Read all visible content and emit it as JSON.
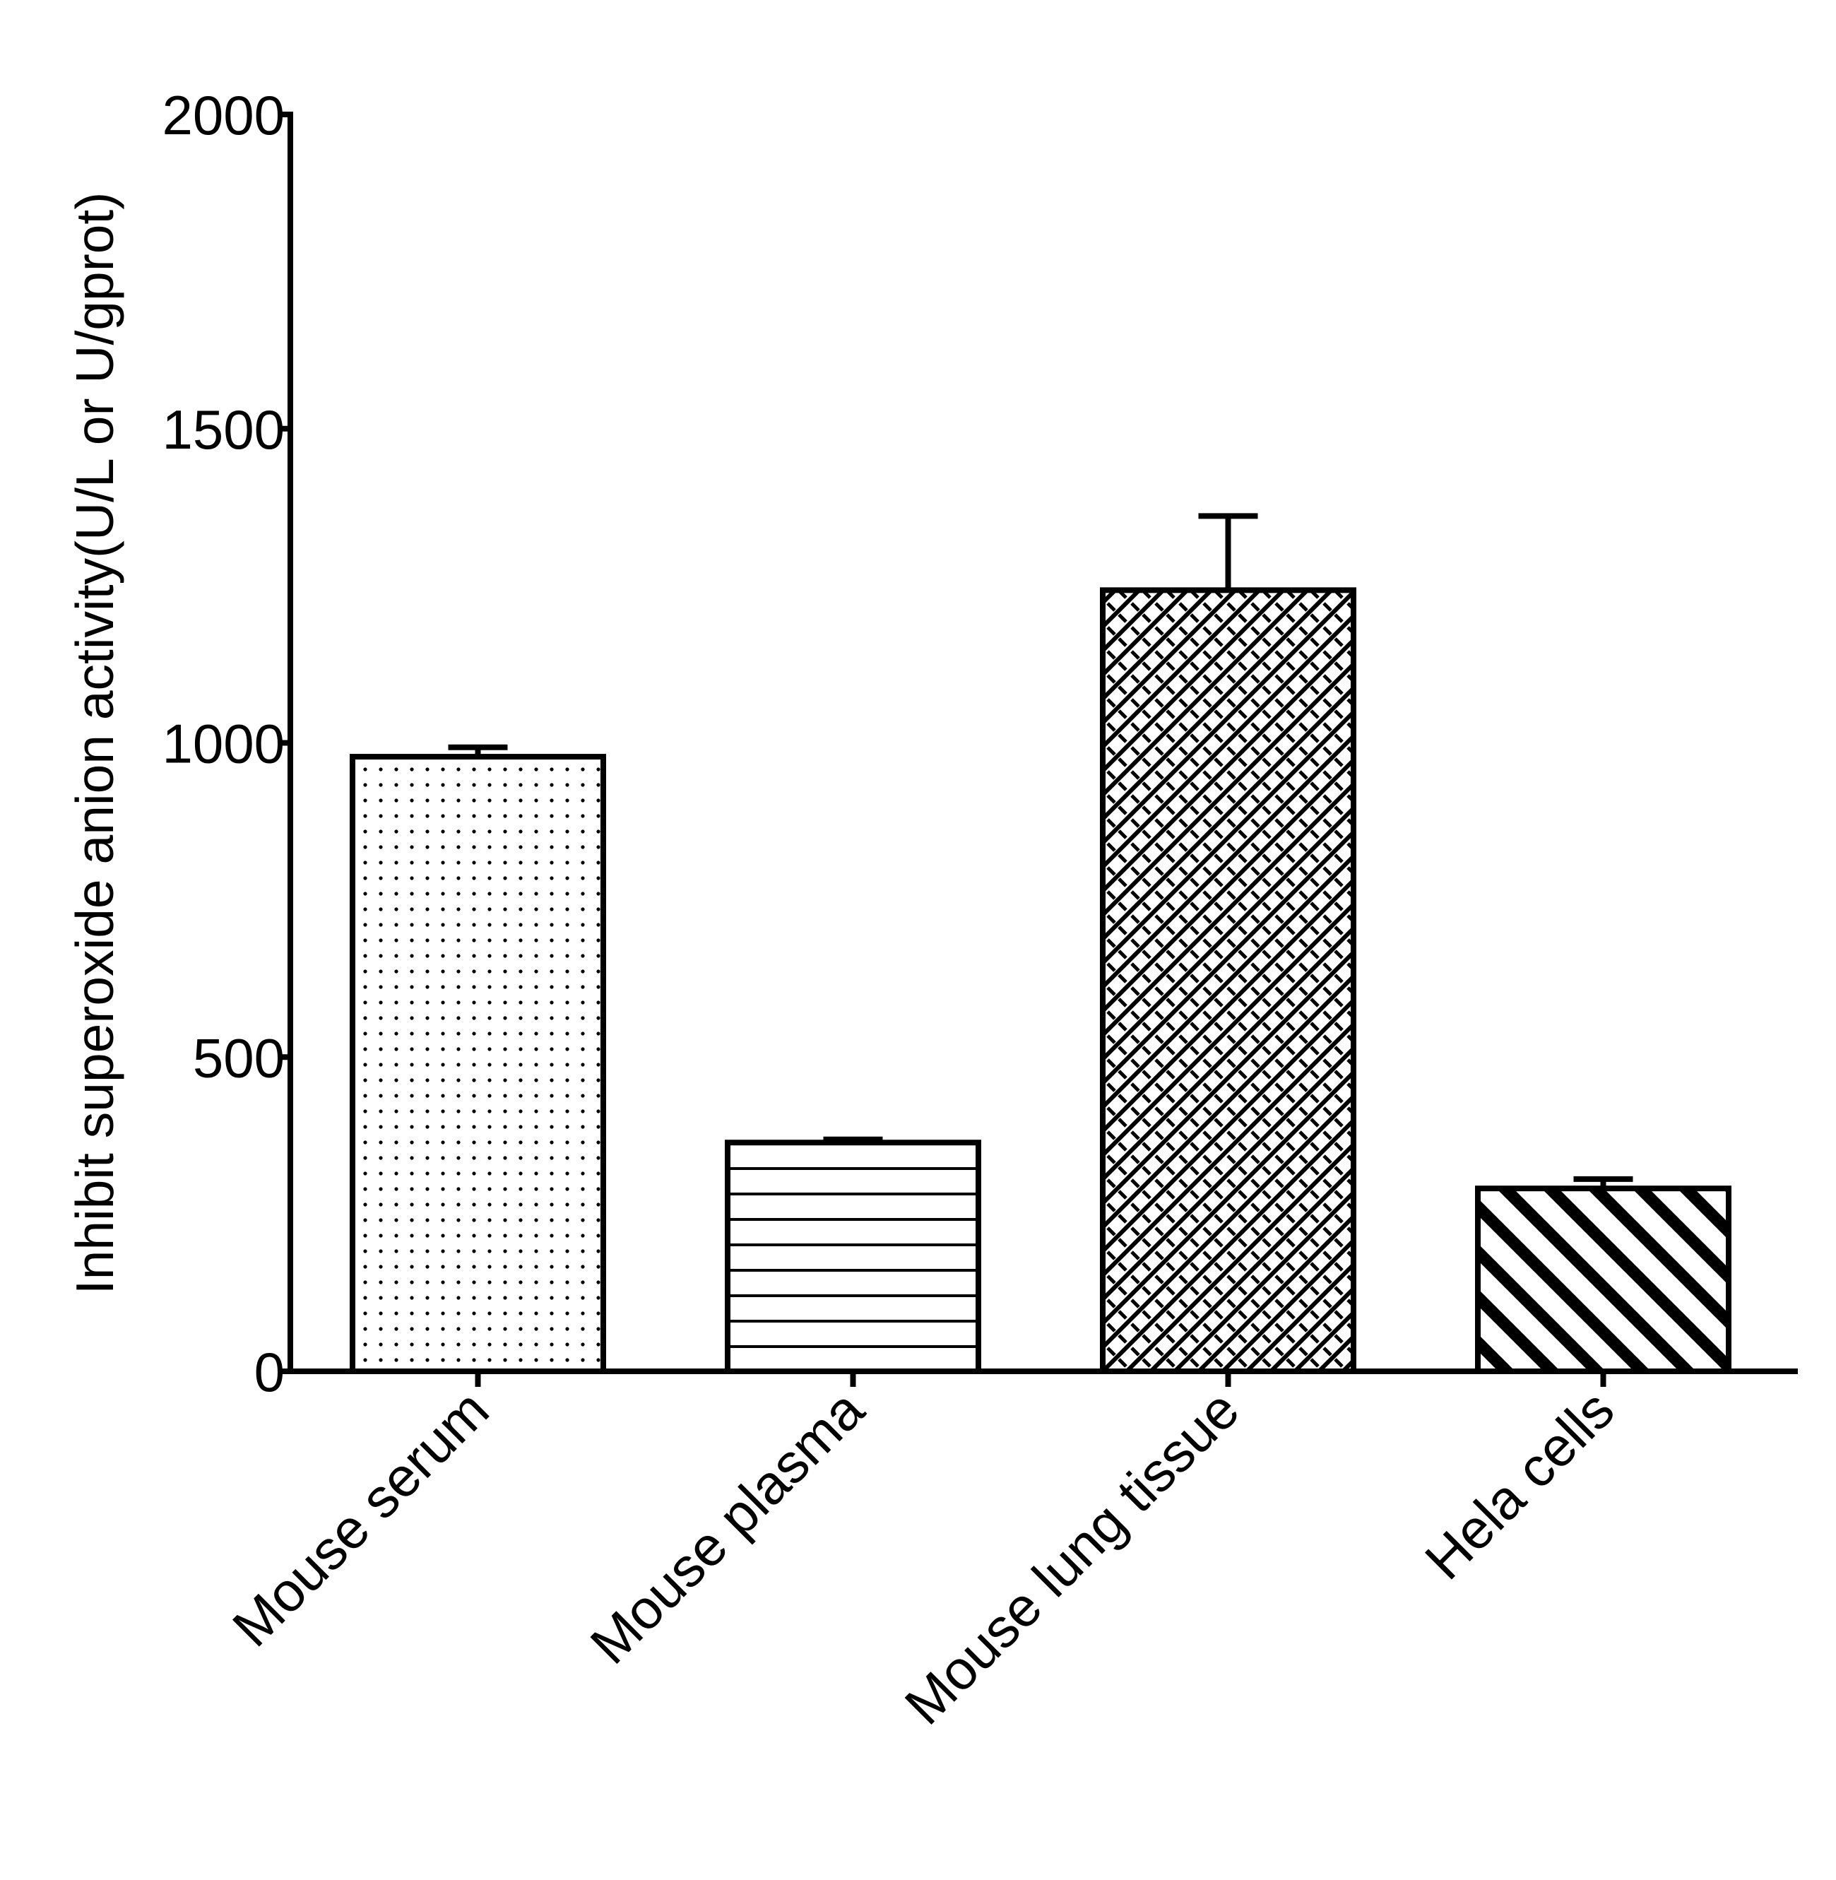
{
  "chart_data": {
    "type": "bar",
    "y_label": "Inhibit superoxide anion  activity(U/L or U/gprot)",
    "categories": [
      "Mouse serum",
      "Mouse plasma",
      "Mouse lung tissue",
      "Hela cells"
    ],
    "values": [
      978,
      364,
      1243,
      291
    ],
    "errors": [
      15,
      5,
      118,
      15
    ],
    "patterns": [
      "dots",
      "horizontal",
      "brick",
      "diagonal"
    ],
    "color": "#000000",
    "ylim": [
      0,
      2000
    ],
    "yticks": [
      0,
      500,
      1000,
      1500,
      2000
    ],
    "grid": false
  }
}
